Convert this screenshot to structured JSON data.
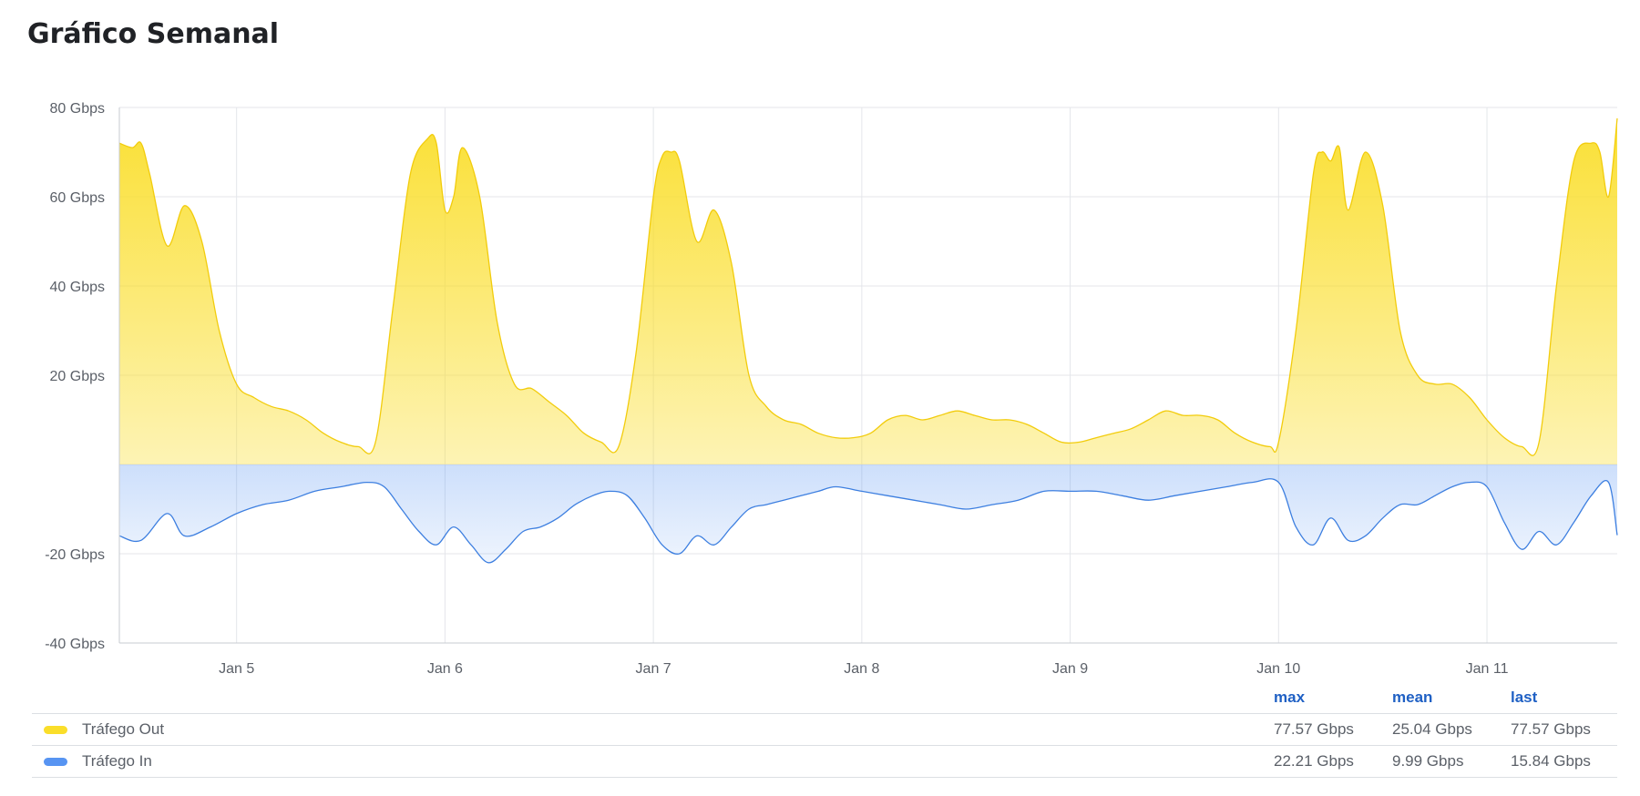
{
  "page": {
    "title": "Gráfico Semanal"
  },
  "chart_data": {
    "type": "area",
    "x_unit": "date",
    "x_range": [
      "Jan 4 10:30",
      "Jan 11 15:00"
    ],
    "y_unit": "Gbps",
    "ylim": [
      -40,
      80
    ],
    "y_ticks": [
      {
        "value": 80,
        "label": "80 Gbps"
      },
      {
        "value": 60,
        "label": "60 Gbps"
      },
      {
        "value": 40,
        "label": "40 Gbps"
      },
      {
        "value": 20,
        "label": "20 Gbps"
      },
      {
        "value": -20,
        "label": "-20 Gbps"
      },
      {
        "value": -40,
        "label": "-40 Gbps"
      }
    ],
    "x_ticks": [
      "Jan 5",
      "Jan 6",
      "Jan 7",
      "Jan 8",
      "Jan 9",
      "Jan 10",
      "Jan 11"
    ],
    "grid": true,
    "legend_placement": "bottom",
    "series": [
      {
        "name": "Tráfego Out",
        "color": "#fade2a",
        "points": [
          [
            "Jan 4 10:30",
            72
          ],
          [
            "Jan 4 12:00",
            71
          ],
          [
            "Jan 4 13:00",
            72
          ],
          [
            "Jan 4 14:00",
            65
          ],
          [
            "Jan 4 16:00",
            49
          ],
          [
            "Jan 4 18:00",
            58
          ],
          [
            "Jan 4 20:00",
            50
          ],
          [
            "Jan 4 22:00",
            30
          ],
          [
            "Jan 5 00:00",
            18
          ],
          [
            "Jan 5 02:00",
            15
          ],
          [
            "Jan 5 04:00",
            13
          ],
          [
            "Jan 5 06:00",
            12
          ],
          [
            "Jan 5 08:00",
            10
          ],
          [
            "Jan 5 10:00",
            7
          ],
          [
            "Jan 5 12:00",
            5
          ],
          [
            "Jan 5 14:00",
            4
          ],
          [
            "Jan 5 16:00",
            5
          ],
          [
            "Jan 5 18:00",
            35
          ],
          [
            "Jan 5 20:00",
            65
          ],
          [
            "Jan 5 22:00",
            73
          ],
          [
            "Jan 5 23:00",
            72
          ],
          [
            "Jan 6 00:00",
            57
          ],
          [
            "Jan 6 01:00",
            60
          ],
          [
            "Jan 6 02:00",
            71
          ],
          [
            "Jan 6 04:00",
            60
          ],
          [
            "Jan 6 06:00",
            32
          ],
          [
            "Jan 6 08:00",
            18
          ],
          [
            "Jan 6 10:00",
            17
          ],
          [
            "Jan 6 12:00",
            14
          ],
          [
            "Jan 6 14:00",
            11
          ],
          [
            "Jan 6 16:00",
            7
          ],
          [
            "Jan 6 18:00",
            5
          ],
          [
            "Jan 6 20:00",
            4
          ],
          [
            "Jan 6 22:00",
            25
          ],
          [
            "Jan 7 00:00",
            60
          ],
          [
            "Jan 7 01:00",
            69
          ],
          [
            "Jan 7 02:00",
            70
          ],
          [
            "Jan 7 03:00",
            68
          ],
          [
            "Jan 7 05:00",
            50
          ],
          [
            "Jan 7 07:00",
            57
          ],
          [
            "Jan 7 09:00",
            45
          ],
          [
            "Jan 7 11:00",
            20
          ],
          [
            "Jan 7 13:00",
            13
          ],
          [
            "Jan 7 15:00",
            10
          ],
          [
            "Jan 7 17:00",
            9
          ],
          [
            "Jan 7 19:00",
            7
          ],
          [
            "Jan 7 21:00",
            6
          ],
          [
            "Jan 7 23:00",
            6
          ],
          [
            "Jan 8 01:00",
            7
          ],
          [
            "Jan 8 03:00",
            10
          ],
          [
            "Jan 8 05:00",
            11
          ],
          [
            "Jan 8 07:00",
            10
          ],
          [
            "Jan 8 09:00",
            11
          ],
          [
            "Jan 8 11:00",
            12
          ],
          [
            "Jan 8 13:00",
            11
          ],
          [
            "Jan 8 15:00",
            10
          ],
          [
            "Jan 8 17:00",
            10
          ],
          [
            "Jan 8 19:00",
            9
          ],
          [
            "Jan 8 21:00",
            7
          ],
          [
            "Jan 8 23:00",
            5
          ],
          [
            "Jan 9 01:00",
            5
          ],
          [
            "Jan 9 03:00",
            6
          ],
          [
            "Jan 9 05:00",
            7
          ],
          [
            "Jan 9 07:00",
            8
          ],
          [
            "Jan 9 09:00",
            10
          ],
          [
            "Jan 9 11:00",
            12
          ],
          [
            "Jan 9 13:00",
            11
          ],
          [
            "Jan 9 15:00",
            11
          ],
          [
            "Jan 9 17:00",
            10
          ],
          [
            "Jan 9 19:00",
            7
          ],
          [
            "Jan 9 21:00",
            5
          ],
          [
            "Jan 9 23:00",
            4
          ],
          [
            "Jan 10 00:00",
            5
          ],
          [
            "Jan 10 02:00",
            30
          ],
          [
            "Jan 10 04:00",
            65
          ],
          [
            "Jan 10 05:00",
            70
          ],
          [
            "Jan 10 06:00",
            68
          ],
          [
            "Jan 10 07:00",
            71
          ],
          [
            "Jan 10 08:00",
            57
          ],
          [
            "Jan 10 10:00",
            70
          ],
          [
            "Jan 10 12:00",
            58
          ],
          [
            "Jan 10 14:00",
            30
          ],
          [
            "Jan 10 16:00",
            20
          ],
          [
            "Jan 10 18:00",
            18
          ],
          [
            "Jan 10 20:00",
            18
          ],
          [
            "Jan 10 22:00",
            15
          ],
          [
            "Jan 11 00:00",
            10
          ],
          [
            "Jan 11 02:00",
            6
          ],
          [
            "Jan 11 04:00",
            4
          ],
          [
            "Jan 11 06:00",
            5
          ],
          [
            "Jan 11 08:00",
            40
          ],
          [
            "Jan 11 10:00",
            68
          ],
          [
            "Jan 11 12:00",
            72
          ],
          [
            "Jan 11 13:00",
            70
          ],
          [
            "Jan 11 14:00",
            60
          ],
          [
            "Jan 11 15:00",
            77.57
          ]
        ]
      },
      {
        "name": "Tráfego In",
        "color": "#5794f2",
        "points": [
          [
            "Jan 4 10:30",
            -16
          ],
          [
            "Jan 4 13:00",
            -17
          ],
          [
            "Jan 4 16:00",
            -11
          ],
          [
            "Jan 4 18:00",
            -16
          ],
          [
            "Jan 4 21:00",
            -14
          ],
          [
            "Jan 5 00:00",
            -11
          ],
          [
            "Jan 5 03:00",
            -9
          ],
          [
            "Jan 5 06:00",
            -8
          ],
          [
            "Jan 5 09:00",
            -6
          ],
          [
            "Jan 5 12:00",
            -5
          ],
          [
            "Jan 5 15:00",
            -4
          ],
          [
            "Jan 5 17:00",
            -5
          ],
          [
            "Jan 5 19:00",
            -10
          ],
          [
            "Jan 5 21:00",
            -15
          ],
          [
            "Jan 5 23:00",
            -18
          ],
          [
            "Jan 6 01:00",
            -14
          ],
          [
            "Jan 6 03:00",
            -18
          ],
          [
            "Jan 6 05:00",
            -22
          ],
          [
            "Jan 6 07:00",
            -19
          ],
          [
            "Jan 6 09:00",
            -15
          ],
          [
            "Jan 6 11:00",
            -14
          ],
          [
            "Jan 6 13:00",
            -12
          ],
          [
            "Jan 6 15:00",
            -9
          ],
          [
            "Jan 6 17:00",
            -7
          ],
          [
            "Jan 6 19:00",
            -6
          ],
          [
            "Jan 6 21:00",
            -7
          ],
          [
            "Jan 6 23:00",
            -12
          ],
          [
            "Jan 7 01:00",
            -18
          ],
          [
            "Jan 7 03:00",
            -20
          ],
          [
            "Jan 7 05:00",
            -16
          ],
          [
            "Jan 7 07:00",
            -18
          ],
          [
            "Jan 7 09:00",
            -14
          ],
          [
            "Jan 7 11:00",
            -10
          ],
          [
            "Jan 7 13:00",
            -9
          ],
          [
            "Jan 7 15:00",
            -8
          ],
          [
            "Jan 7 17:00",
            -7
          ],
          [
            "Jan 7 19:00",
            -6
          ],
          [
            "Jan 7 21:00",
            -5
          ],
          [
            "Jan 8 00:00",
            -6
          ],
          [
            "Jan 8 03:00",
            -7
          ],
          [
            "Jan 8 06:00",
            -8
          ],
          [
            "Jan 8 09:00",
            -9
          ],
          [
            "Jan 8 12:00",
            -10
          ],
          [
            "Jan 8 15:00",
            -9
          ],
          [
            "Jan 8 18:00",
            -8
          ],
          [
            "Jan 8 21:00",
            -6
          ],
          [
            "Jan 9 00:00",
            -6
          ],
          [
            "Jan 9 03:00",
            -6
          ],
          [
            "Jan 9 06:00",
            -7
          ],
          [
            "Jan 9 09:00",
            -8
          ],
          [
            "Jan 9 12:00",
            -7
          ],
          [
            "Jan 9 15:00",
            -6
          ],
          [
            "Jan 9 18:00",
            -5
          ],
          [
            "Jan 9 21:00",
            -4
          ],
          [
            "Jan 10 00:00",
            -4
          ],
          [
            "Jan 10 02:00",
            -14
          ],
          [
            "Jan 10 04:00",
            -18
          ],
          [
            "Jan 10 06:00",
            -12
          ],
          [
            "Jan 10 08:00",
            -17
          ],
          [
            "Jan 10 10:00",
            -16
          ],
          [
            "Jan 10 12:00",
            -12
          ],
          [
            "Jan 10 14:00",
            -9
          ],
          [
            "Jan 10 16:00",
            -9
          ],
          [
            "Jan 10 18:00",
            -7
          ],
          [
            "Jan 10 20:00",
            -5
          ],
          [
            "Jan 10 22:00",
            -4
          ],
          [
            "Jan 11 00:00",
            -5
          ],
          [
            "Jan 11 02:00",
            -13
          ],
          [
            "Jan 11 04:00",
            -19
          ],
          [
            "Jan 11 06:00",
            -15
          ],
          [
            "Jan 11 08:00",
            -18
          ],
          [
            "Jan 11 10:00",
            -13
          ],
          [
            "Jan 11 12:00",
            -7
          ],
          [
            "Jan 11 14:00",
            -4
          ],
          [
            "Jan 11 15:00",
            -15.84
          ]
        ]
      }
    ]
  },
  "legend": {
    "headers": {
      "max": "max",
      "mean": "mean",
      "last": "last"
    },
    "rows": [
      {
        "name": "Tráfego Out",
        "color": "#fade2a",
        "max": "77.57 Gbps",
        "mean": "25.04 Gbps",
        "last": "77.57 Gbps"
      },
      {
        "name": "Tráfego In",
        "color": "#5794f2",
        "max": "22.21 Gbps",
        "mean": "9.99 Gbps",
        "last": "15.84 Gbps"
      }
    ]
  }
}
